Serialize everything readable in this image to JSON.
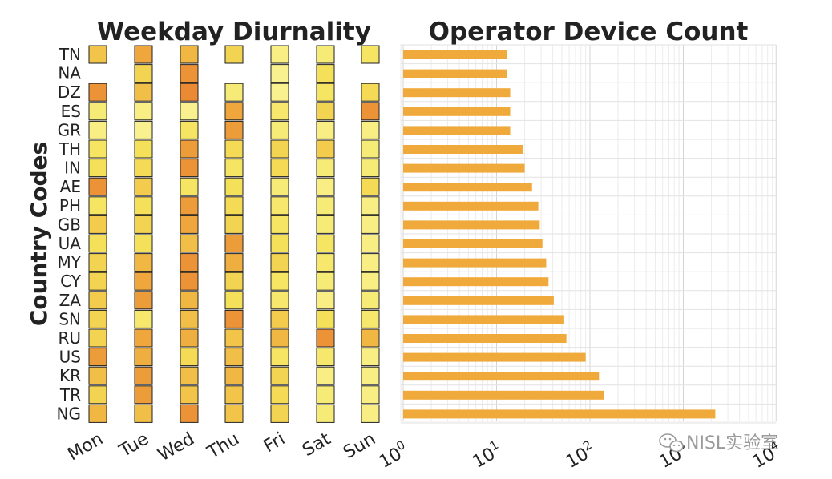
{
  "chart_data": [
    {
      "type": "heatmap",
      "title": "Weekday Diurnality",
      "ylabel": "Country Codes",
      "x_categories": [
        "Mon",
        "Tue",
        "Wed",
        "Thu",
        "Fri",
        "Sat",
        "Sun"
      ],
      "y_categories": [
        "TN",
        "NA",
        "DZ",
        "ES",
        "GR",
        "TH",
        "IN",
        "AE",
        "PH",
        "GB",
        "UA",
        "MY",
        "CY",
        "ZA",
        "SN",
        "RU",
        "US",
        "KR",
        "TR",
        "NG"
      ],
      "values": [
        [
          0.55,
          0.75,
          0.65,
          0.45,
          0.15,
          0.2,
          0.3
        ],
        [
          null,
          0.45,
          0.85,
          null,
          0.1,
          0.35,
          null
        ],
        [
          0.85,
          0.6,
          0.9,
          0.2,
          0.1,
          0.3,
          0.4
        ],
        [
          0.2,
          0.15,
          0.1,
          0.75,
          0.25,
          0.45,
          0.85
        ],
        [
          0.15,
          0.1,
          0.3,
          0.8,
          0.2,
          0.15,
          0.15
        ],
        [
          0.3,
          0.35,
          0.8,
          0.4,
          0.45,
          0.5,
          0.2
        ],
        [
          0.35,
          0.4,
          0.85,
          0.3,
          0.4,
          0.2,
          0.2
        ],
        [
          0.85,
          0.5,
          0.3,
          0.35,
          0.2,
          0.15,
          0.4
        ],
        [
          0.3,
          0.35,
          0.8,
          0.4,
          0.25,
          0.2,
          0.15
        ],
        [
          0.5,
          0.45,
          0.75,
          0.45,
          0.3,
          0.2,
          0.15
        ],
        [
          0.35,
          0.35,
          0.6,
          0.8,
          0.35,
          0.3,
          0.15
        ],
        [
          0.45,
          0.65,
          0.85,
          0.7,
          0.45,
          0.25,
          0.15
        ],
        [
          0.45,
          0.75,
          0.85,
          0.45,
          0.3,
          0.2,
          0.15
        ],
        [
          0.5,
          0.8,
          0.65,
          0.35,
          0.25,
          0.15,
          0.2
        ],
        [
          0.45,
          0.25,
          0.6,
          0.85,
          0.5,
          0.35,
          0.25
        ],
        [
          0.45,
          0.75,
          0.7,
          0.55,
          0.65,
          0.85,
          0.65
        ],
        [
          0.8,
          0.7,
          0.4,
          0.6,
          0.3,
          0.25,
          0.15
        ],
        [
          0.6,
          0.8,
          0.6,
          0.65,
          0.45,
          0.15,
          0.15
        ],
        [
          0.45,
          0.8,
          0.55,
          0.55,
          0.4,
          0.2,
          0.15
        ],
        [
          0.65,
          0.6,
          0.85,
          0.55,
          0.45,
          0.2,
          0.15
        ]
      ],
      "colormap": [
        "#fbf7a6",
        "#f5e35a",
        "#f0b542",
        "#e8772f"
      ]
    },
    {
      "type": "bar",
      "orientation": "horizontal",
      "title": "Operator Device Count",
      "categories": [
        "TN",
        "NA",
        "DZ",
        "ES",
        "GR",
        "TH",
        "IN",
        "AE",
        "PH",
        "GB",
        "UA",
        "MY",
        "CY",
        "ZA",
        "SN",
        "RU",
        "US",
        "KR",
        "TR",
        "NG"
      ],
      "values": [
        13,
        13,
        14,
        14,
        14,
        19,
        20,
        24,
        28,
        29,
        31,
        34,
        36,
        41,
        53,
        56,
        90,
        125,
        140,
        2200
      ],
      "x_scale": "log",
      "xlim": [
        1,
        10000
      ],
      "xticks": [
        1,
        10,
        100,
        1000,
        10000
      ],
      "xtick_labels": [
        "10^0",
        "10^1",
        "10^2",
        "10^3",
        "10^4"
      ],
      "color": "#f0aa3c",
      "grid": true
    }
  ],
  "watermark": {
    "text": "NISL实验室",
    "icon": "wechat-icon"
  },
  "colors": {
    "grid": "#d9d9d9",
    "cell_border": "#222222",
    "text": "#222222",
    "watermark": "#9a9a9a"
  }
}
